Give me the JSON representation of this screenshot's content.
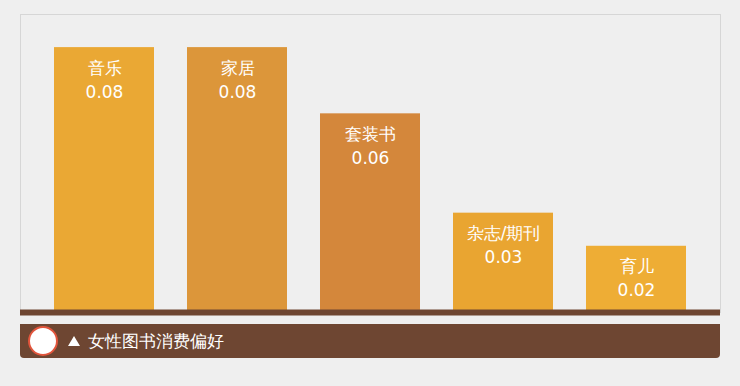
{
  "chart_data": {
    "type": "bar",
    "title": "女性图书消费偏好",
    "categories": [
      "音乐",
      "家居",
      "套装书",
      "杂志/期刊",
      "育儿"
    ],
    "values": [
      0.08,
      0.08,
      0.06,
      0.03,
      0.02
    ],
    "colors": [
      "#eaa834",
      "#dc963a",
      "#d4873b",
      "#e9a531",
      "#eead35"
    ],
    "ylim": [
      0,
      0.09
    ],
    "data_labels": true,
    "tick_labels": false,
    "grid": false
  }
}
